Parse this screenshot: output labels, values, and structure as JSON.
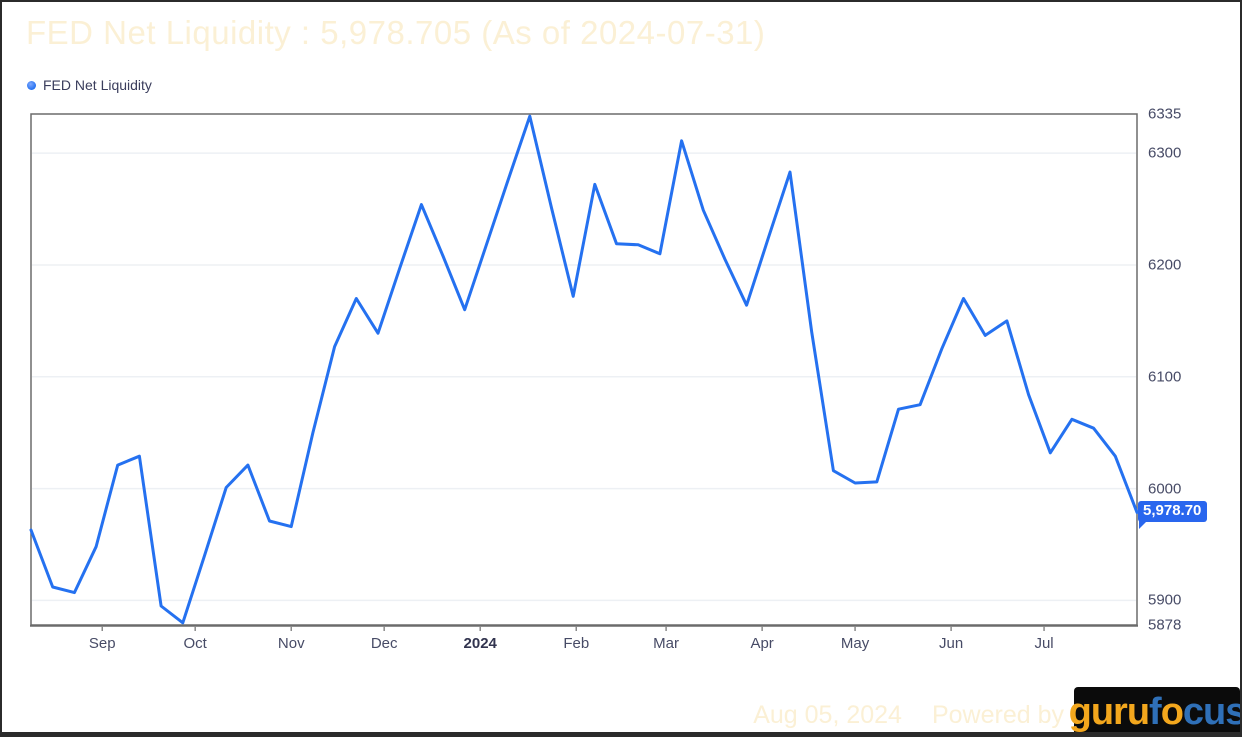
{
  "title": "FED Net Liquidity : 5,978.705 (As of 2024-07-31)",
  "legend": {
    "label": "FED Net Liquidity",
    "dot_color": "#2571F0"
  },
  "badge": {
    "text": "5,978.70",
    "bg_color": "#2966EE"
  },
  "footer": {
    "date_text": "Aug 05, 2024",
    "powered_by": "Powered by",
    "logo_parts": [
      {
        "text": "guru",
        "color": "#F3A71D"
      },
      {
        "text": "f",
        "color": "#2F70B8"
      },
      {
        "text": "o",
        "color": "#F3A71D"
      },
      {
        "text": "cus",
        "color": "#2F70B8"
      }
    ]
  },
  "chart_data": {
    "type": "line",
    "title": "FED Net Liquidity : 5,978.705 (As of 2024-07-31)",
    "grid": true,
    "legend_position": "top-left",
    "line_color": "#2571F0",
    "gridline_color": "#edf0f4",
    "border_color": "#6b6b6b",
    "ylim": [
      5878,
      6335
    ],
    "xlim": [
      "2023-08-09",
      "2024-07-31"
    ],
    "y_ticks": [
      6335,
      6300,
      6200,
      6100,
      6000,
      5900,
      5878
    ],
    "gridline_values": [
      6300,
      6200,
      6100,
      6000,
      5900
    ],
    "x_ticks": [
      {
        "label": "Sep",
        "date": "2023-09-01",
        "bold": false
      },
      {
        "label": "Oct",
        "date": "2023-10-01",
        "bold": false
      },
      {
        "label": "Nov",
        "date": "2023-11-01",
        "bold": false
      },
      {
        "label": "Dec",
        "date": "2023-12-01",
        "bold": false
      },
      {
        "label": "2024",
        "date": "2024-01-01",
        "bold": true
      },
      {
        "label": "Feb",
        "date": "2024-02-01",
        "bold": false
      },
      {
        "label": "Mar",
        "date": "2024-03-01",
        "bold": false
      },
      {
        "label": "Apr",
        "date": "2024-04-01",
        "bold": false
      },
      {
        "label": "May",
        "date": "2024-05-01",
        "bold": false
      },
      {
        "label": "Jun",
        "date": "2024-06-01",
        "bold": false
      },
      {
        "label": "Jul",
        "date": "2024-07-01",
        "bold": false
      }
    ],
    "series": [
      {
        "name": "FED Net Liquidity",
        "x": [
          "2023-08-09",
          "2023-08-16",
          "2023-08-23",
          "2023-08-30",
          "2023-09-06",
          "2023-09-13",
          "2023-09-20",
          "2023-09-27",
          "2023-10-04",
          "2023-10-11",
          "2023-10-18",
          "2023-10-25",
          "2023-11-01",
          "2023-11-08",
          "2023-11-15",
          "2023-11-22",
          "2023-11-29",
          "2023-12-06",
          "2023-12-13",
          "2023-12-20",
          "2023-12-27",
          "2024-01-03",
          "2024-01-10",
          "2024-01-17",
          "2024-01-24",
          "2024-01-31",
          "2024-02-07",
          "2024-02-14",
          "2024-02-21",
          "2024-02-28",
          "2024-03-06",
          "2024-03-13",
          "2024-03-20",
          "2024-03-27",
          "2024-04-03",
          "2024-04-10",
          "2024-04-17",
          "2024-04-24",
          "2024-05-01",
          "2024-05-08",
          "2024-05-15",
          "2024-05-22",
          "2024-05-29",
          "2024-06-05",
          "2024-06-12",
          "2024-06-19",
          "2024-06-26",
          "2024-07-03",
          "2024-07-10",
          "2024-07-17",
          "2024-07-24",
          "2024-07-31"
        ],
        "values": [
          5963,
          5912,
          5907,
          5948,
          6021,
          6029,
          5895,
          5880,
          5940,
          6001,
          6021,
          5971,
          5966,
          6050,
          6127,
          6170,
          6139,
          6197,
          6254,
          6208,
          6160,
          6218,
          6276,
          6333,
          6251,
          6172,
          6272,
          6219,
          6218,
          6210,
          6311,
          6249,
          6205,
          6164,
          6224,
          6283,
          6140,
          6016,
          6005,
          6006,
          6071,
          6075,
          6125,
          6170,
          6137,
          6150,
          6084,
          6032,
          6062,
          6054,
          6029,
          5978.705
        ]
      }
    ],
    "last_value_label": "5,978.70"
  }
}
